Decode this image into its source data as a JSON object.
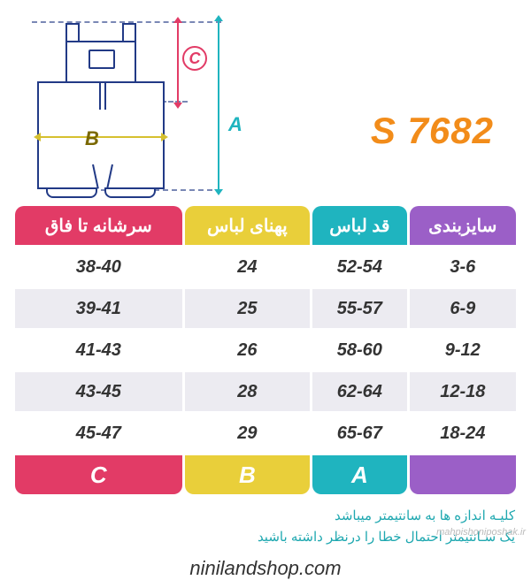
{
  "sku": {
    "text": "S 7682",
    "color": "#f28c1a"
  },
  "diagram": {
    "labels": {
      "a": "A",
      "b": "B",
      "c": "C"
    },
    "colors": {
      "a": "#1fb4bf",
      "b": "#d6c02f",
      "c": "#e23b66",
      "outline": "#223a86"
    }
  },
  "table": {
    "columns": [
      {
        "label": "سایزبندی",
        "color": "#9b5fc7",
        "footer": ""
      },
      {
        "label": "قد لباس",
        "color": "#1fb4bf",
        "footer": "A"
      },
      {
        "label": "پهنای لباس",
        "color": "#e9cf3a",
        "footer": "B"
      },
      {
        "label": "سرشانه تا فاق",
        "color": "#e23b66",
        "footer": "C"
      }
    ],
    "rows": [
      [
        "3-6",
        "52-54",
        "24",
        "38-40"
      ],
      [
        "6-9",
        "55-57",
        "25",
        "39-41"
      ],
      [
        "9-12",
        "58-60",
        "26",
        "41-43"
      ],
      [
        "12-18",
        "62-64",
        "28",
        "43-45"
      ],
      [
        "18-24",
        "65-67",
        "29",
        "45-47"
      ]
    ],
    "row_alt_bg": "#ecebf1"
  },
  "notes": {
    "line1": "کلیـه اندازه ها به سانتیمتر میباشد",
    "line2": "یک سـانتیمتر احتمال خطا را درنظر داشته باشید",
    "color": "#1fa8b0"
  },
  "footer_url": "ninilandshop.com",
  "watermark": "mahpishoniposhak.ir"
}
